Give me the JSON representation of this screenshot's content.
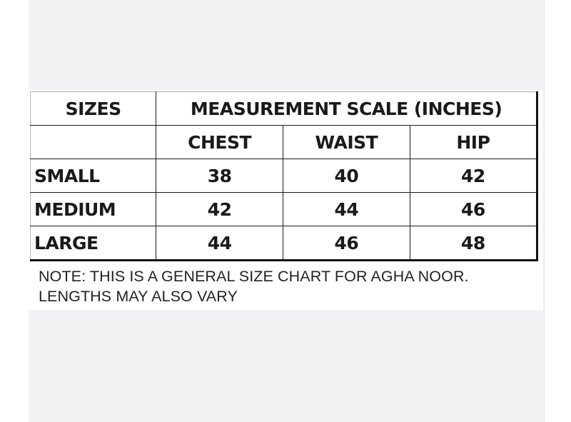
{
  "table": {
    "size_header": "SIZES",
    "scale_header": "MEASUREMENT SCALE (INCHES)",
    "columns": [
      "CHEST",
      "WAIST",
      "HIP"
    ],
    "rows": [
      {
        "size": "SMALL",
        "values": [
          "38",
          "40",
          "42"
        ]
      },
      {
        "size": "MEDIUM",
        "values": [
          "42",
          "44",
          "46"
        ]
      },
      {
        "size": "LARGE",
        "values": [
          "44",
          "46",
          "48"
        ]
      }
    ]
  },
  "note": {
    "line1": "NOTE: THIS IS A GENERAL SIZE CHART FOR AGHA NOOR.",
    "line2": "LENGTHS MAY ALSO VARY"
  }
}
